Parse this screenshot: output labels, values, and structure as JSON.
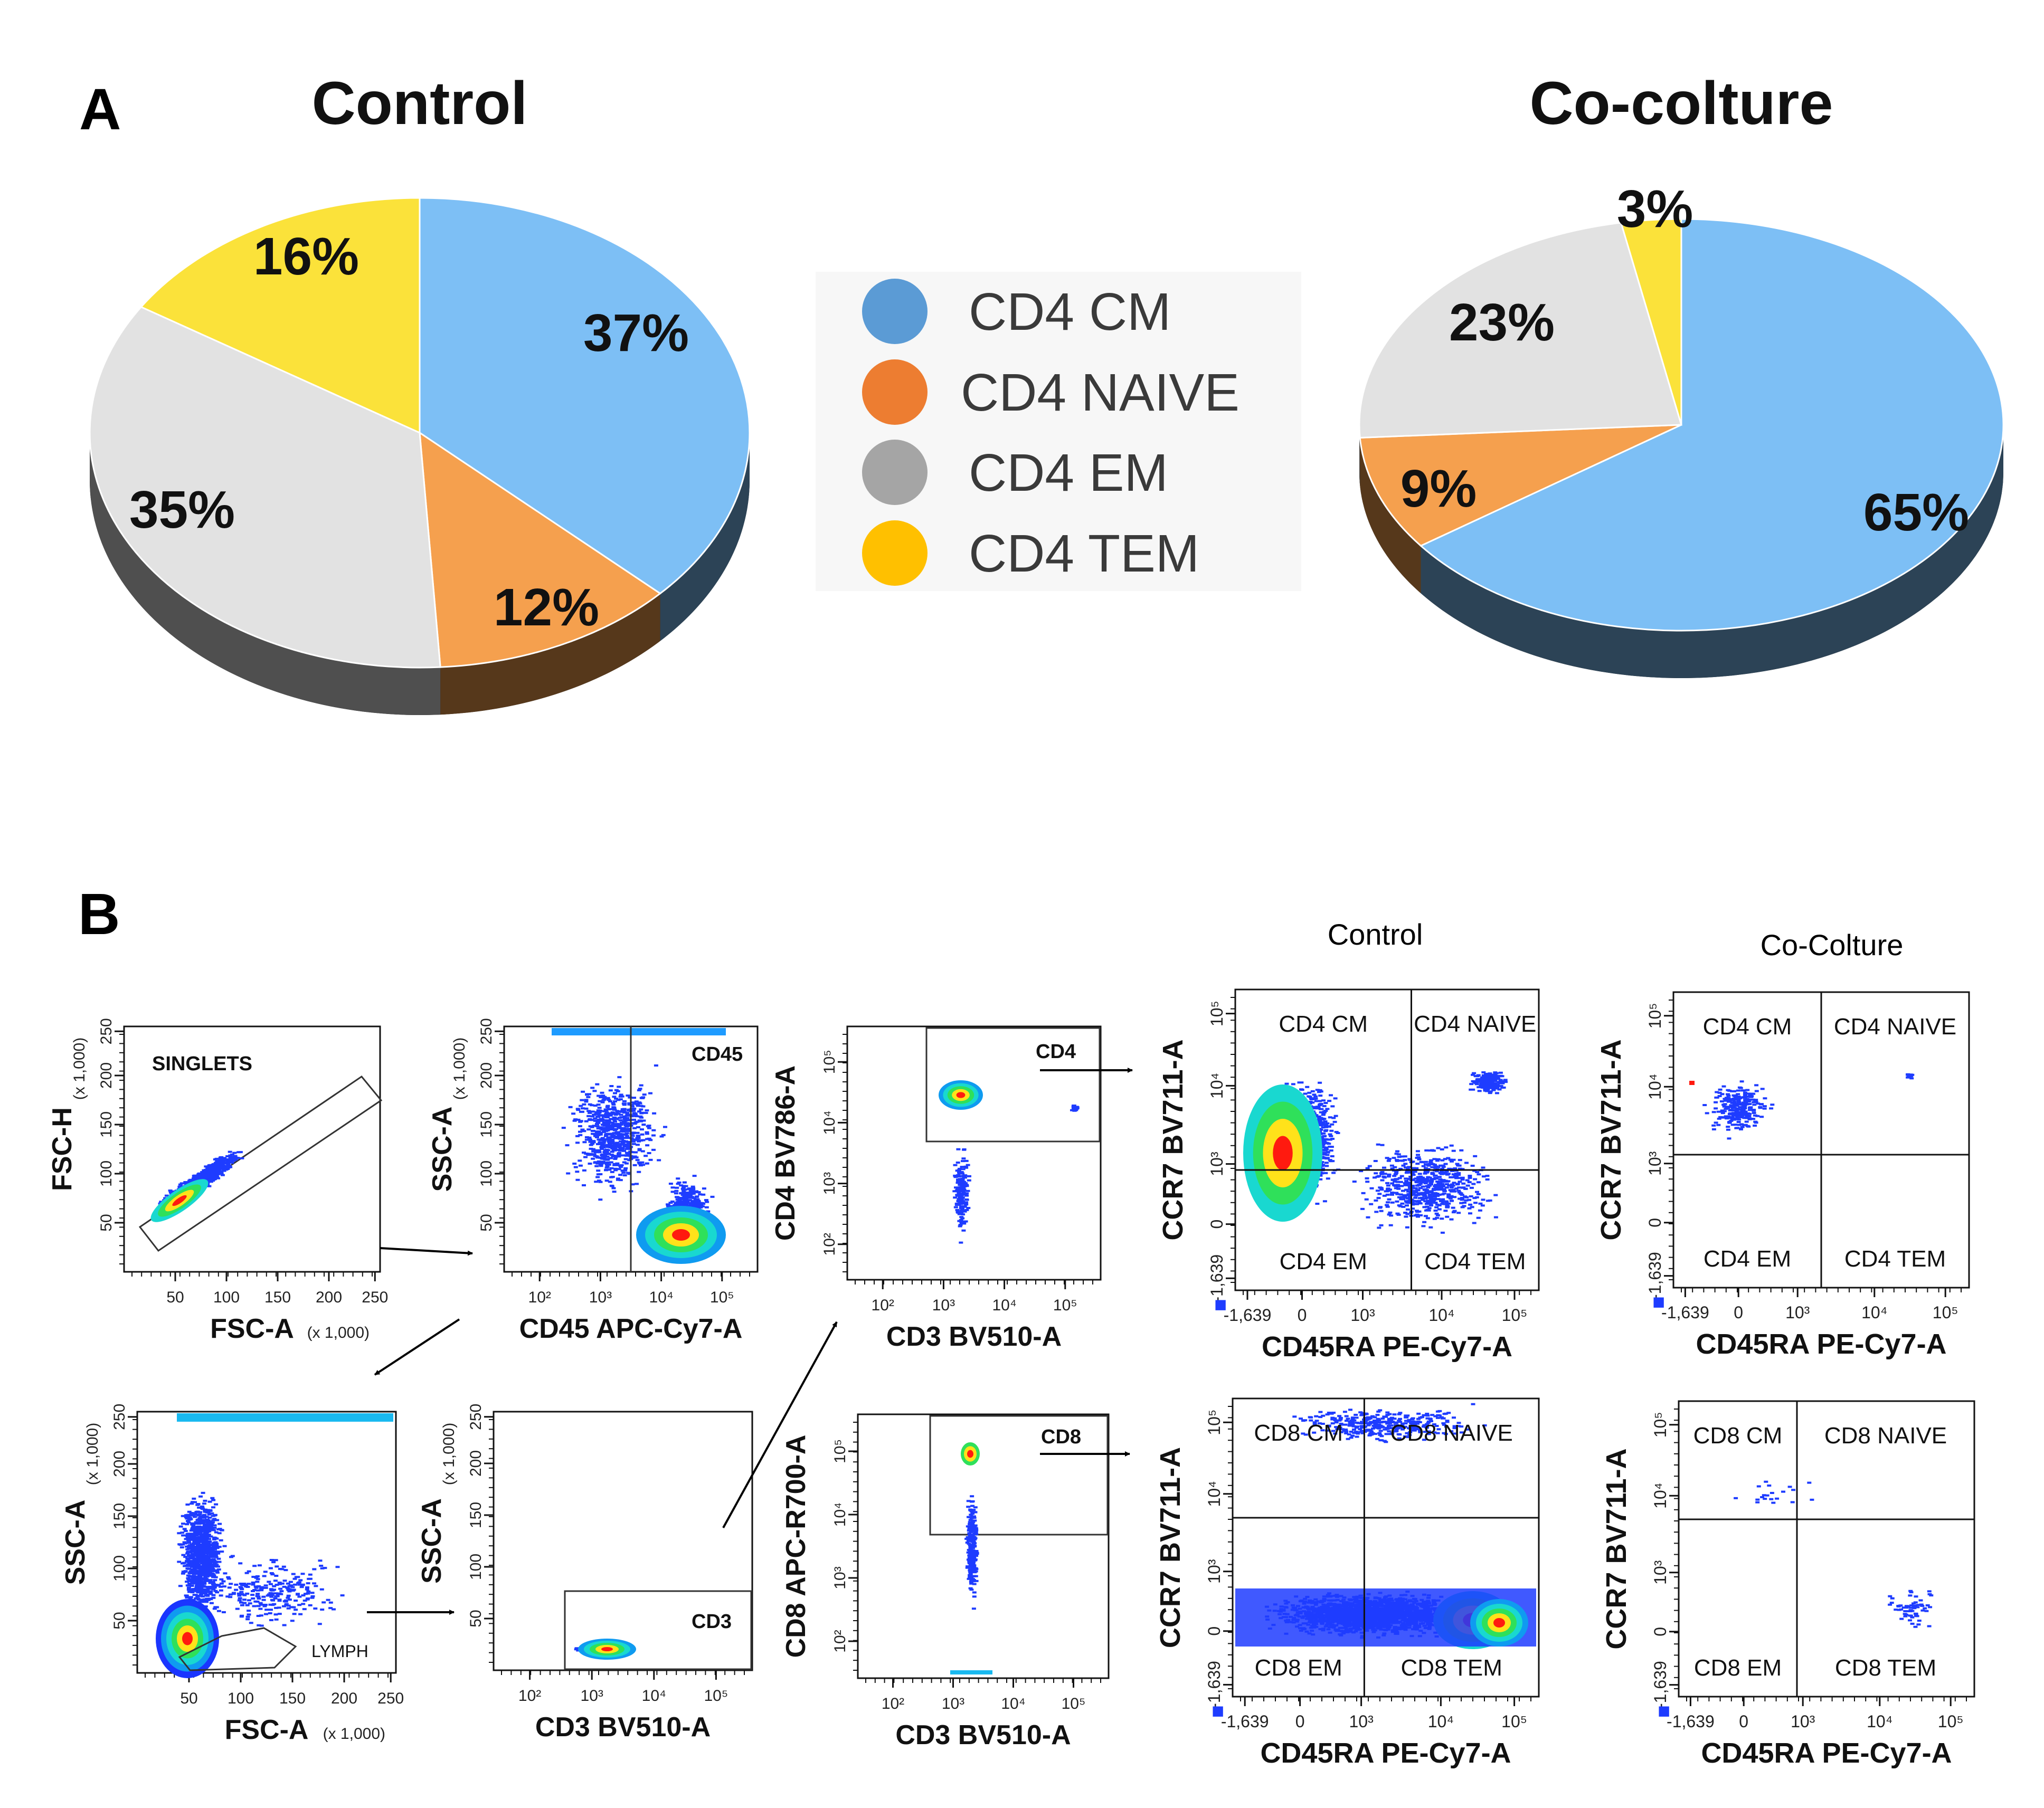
{
  "panel_a": {
    "label": "A"
  },
  "panel_b": {
    "label": "B",
    "column_titles": {
      "control": "Control",
      "coculture": "Co-Colture"
    }
  },
  "legend": {
    "items": [
      {
        "label": "CD4 CM",
        "color": "#5b9bd5"
      },
      {
        "label": "CD4 NAIVE",
        "color": "#ed7d31"
      },
      {
        "label": "CD4 EM",
        "color": "#a5a5a5"
      },
      {
        "label": "CD4 TEM",
        "color": "#ffc000"
      }
    ]
  },
  "chart_data": [
    {
      "type": "pie",
      "title": "Control",
      "categories": [
        "CD4 CM",
        "CD4 NAIVE",
        "CD4 EM",
        "CD4 TEM"
      ],
      "values": [
        37,
        12,
        35,
        16
      ],
      "labels": [
        "37%",
        "12%",
        "35%",
        "16%"
      ],
      "colors": [
        "#7dbff5",
        "#f5a04e",
        "#e2e2e2",
        "#fbe23a"
      ]
    },
    {
      "type": "pie",
      "title": "Co-colture",
      "categories": [
        "CD4 CM",
        "CD4 NAIVE",
        "CD4 EM",
        "CD4 TEM"
      ],
      "values": [
        65,
        9,
        23,
        3
      ],
      "labels": [
        "65%",
        "9%",
        "23%",
        "3%"
      ],
      "colors": [
        "#7dbff5",
        "#f5a04e",
        "#e2e2e2",
        "#fbe23a"
      ]
    },
    {
      "type": "scatter",
      "title": "",
      "xlabel": "FSC-A",
      "ylabel": "FSC-H",
      "x_ticks": [
        "50",
        "100",
        "150",
        "200",
        "250"
      ],
      "x_unit": "(x 1,000)",
      "y_ticks": [
        "50",
        "100",
        "150",
        "200",
        "250"
      ],
      "y_unit": "(x 1,000)",
      "gates": [
        "SINGLETS"
      ]
    },
    {
      "type": "scatter",
      "xlabel": "CD45 APC-Cy7-A",
      "ylabel": "SSC-A",
      "x_ticks": [
        "10²",
        "10³",
        "10⁴",
        "10⁵"
      ],
      "y_ticks": [
        "50",
        "100",
        "150",
        "200",
        "250"
      ],
      "y_unit": "(x 1,000)",
      "gates": [
        "CD45"
      ]
    },
    {
      "type": "scatter",
      "xlabel": "CD3 BV510-A",
      "ylabel": "CD4 BV786-A",
      "x_ticks": [
        "10²",
        "10³",
        "10⁴",
        "10⁵"
      ],
      "y_ticks": [
        "10²",
        "10³",
        "10⁴",
        "10⁵"
      ],
      "gates": [
        "CD4"
      ]
    },
    {
      "type": "scatter",
      "xlabel": "FSC-A",
      "ylabel": "SSC-A",
      "x_ticks": [
        "50",
        "100",
        "150",
        "200",
        "250"
      ],
      "x_unit": "(x 1,000)",
      "y_ticks": [
        "50",
        "100",
        "150",
        "200",
        "250"
      ],
      "y_unit": "(x 1,000)",
      "gates": [
        "LYMPH"
      ]
    },
    {
      "type": "scatter",
      "xlabel": "CD3 BV510-A",
      "ylabel": "SSC-A",
      "x_ticks": [
        "10²",
        "10³",
        "10⁴",
        "10⁵"
      ],
      "y_ticks": [
        "50",
        "100",
        "150",
        "200",
        "250"
      ],
      "y_unit": "(x 1,000)",
      "gates": [
        "CD3"
      ]
    },
    {
      "type": "scatter",
      "xlabel": "CD3 BV510-A",
      "ylabel": "CD8 APC-R700-A",
      "x_ticks": [
        "10²",
        "10³",
        "10⁴",
        "10⁵"
      ],
      "y_ticks": [
        "10²",
        "10³",
        "10⁴",
        "10⁵"
      ],
      "gates": [
        "CD8"
      ]
    },
    {
      "type": "scatter",
      "title": "Control",
      "xlabel": "CD45RA PE-Cy7-A",
      "ylabel": "CCR7 BV711-A",
      "x_ticks": [
        "-1,639",
        "0",
        "10³",
        "10⁴",
        "10⁵"
      ],
      "y_ticks": [
        "-1,639",
        "0",
        "10³",
        "10⁴",
        "10⁵"
      ],
      "quadrants": [
        "CD4 CM",
        "CD4 NAIVE",
        "CD4 EM",
        "CD4 TEM"
      ]
    },
    {
      "type": "scatter",
      "title": "Co-Colture",
      "xlabel": "CD45RA PE-Cy7-A",
      "ylabel": "CCR7 BV711-A",
      "x_ticks": [
        "-1,639",
        "0",
        "10³",
        "10⁴",
        "10⁵"
      ],
      "y_ticks": [
        "-1,639",
        "0",
        "10³",
        "10⁴",
        "10⁵"
      ],
      "quadrants": [
        "CD4 CM",
        "CD4 NAIVE",
        "CD4 EM",
        "CD4 TEM"
      ]
    },
    {
      "type": "scatter",
      "xlabel": "CD45RA PE-Cy7-A",
      "ylabel": "CCR7 BV711-A",
      "x_ticks": [
        "-1,639",
        "0",
        "10³",
        "10⁴",
        "10⁵"
      ],
      "y_ticks": [
        "-1,639",
        "0",
        "10³",
        "10⁴",
        "10⁵"
      ],
      "quadrants": [
        "CD8 CM",
        "CD8 NAIVE",
        "CD8 EM",
        "CD8 TEM"
      ]
    },
    {
      "type": "scatter",
      "xlabel": "CD45RA PE-Cy7-A",
      "ylabel": "CCR7 BV711-A",
      "x_ticks": [
        "-1,639",
        "0",
        "10³",
        "10⁴",
        "10⁵"
      ],
      "y_ticks": [
        "-1,639",
        "0",
        "10³",
        "10⁴",
        "10⁵"
      ],
      "quadrants": [
        "CD8 CM",
        "CD8 NAIVE",
        "CD8 EM",
        "CD8 TEM"
      ]
    }
  ]
}
